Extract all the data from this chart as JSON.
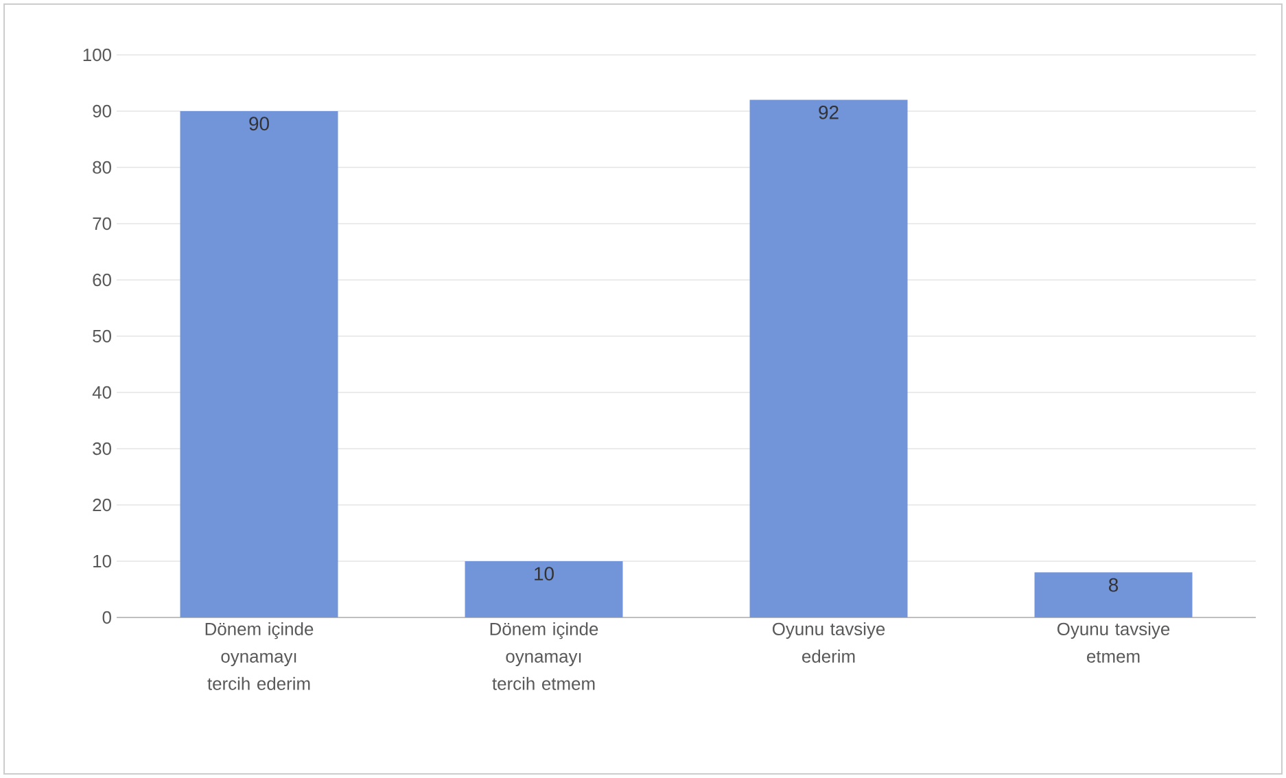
{
  "chart_data": {
    "type": "bar",
    "categories": [
      "Dönem içinde oynamayı tercih ederim",
      "Dönem içinde oynamayı tercih etmem",
      "Oyunu tavsiye ederim",
      "Oyunu tavsiye etmem"
    ],
    "values": [
      90,
      10,
      92,
      8
    ],
    "color": "#7294d8",
    "ylim": [
      0,
      100
    ],
    "yticks": [
      0,
      10,
      20,
      30,
      40,
      50,
      60,
      70,
      80,
      90,
      100
    ],
    "grid": "y",
    "data_labels": true
  }
}
